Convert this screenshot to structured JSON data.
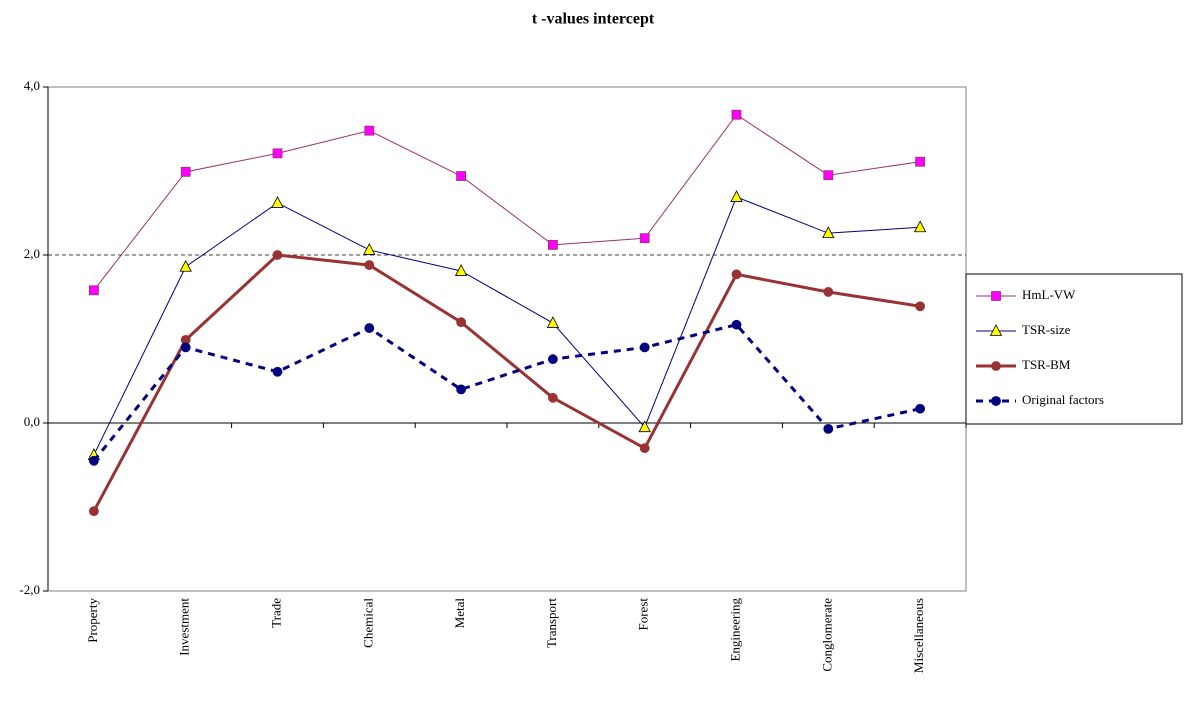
{
  "chart_data": {
    "type": "line",
    "title": "t -values intercept",
    "categories": [
      "Property",
      "Investment",
      "Trade",
      "Chemical",
      "Metal",
      "Transport",
      "Forest",
      "Engineering",
      "Conglomerate",
      "Miscellaneous"
    ],
    "ylim": [
      -2,
      4
    ],
    "yticks": [
      {
        "value": -2,
        "label": "-2,0"
      },
      {
        "value": 0,
        "label": "0,0"
      },
      {
        "value": 2,
        "label": "2,0"
      },
      {
        "value": 4,
        "label": "4,0"
      }
    ],
    "reference_lines": [
      2
    ],
    "legend": "right",
    "series": [
      {
        "name": "HmL-VW",
        "color": "#993366",
        "marker": "square",
        "marker_fill": "#ff00ff",
        "line_width": 1,
        "dashed": false,
        "values": [
          1.58,
          2.99,
          3.21,
          3.48,
          2.94,
          2.12,
          2.2,
          3.67,
          2.95,
          3.11
        ]
      },
      {
        "name": "TSR-size",
        "color": "#000080",
        "marker": "triangle",
        "marker_fill": "#ffff00",
        "line_width": 1,
        "dashed": false,
        "values": [
          -0.38,
          1.86,
          2.62,
          2.06,
          1.81,
          1.19,
          -0.05,
          2.69,
          2.26,
          2.33
        ]
      },
      {
        "name": "TSR-BM",
        "color": "#993333",
        "marker": "circle",
        "marker_fill": "#993333",
        "line_width": 3,
        "dashed": false,
        "values": [
          -1.05,
          0.99,
          2.0,
          1.88,
          1.2,
          0.3,
          -0.3,
          1.77,
          1.56,
          1.39
        ]
      },
      {
        "name": "Original factors",
        "color": "#000080",
        "marker": "circle",
        "marker_fill": "#000080",
        "line_width": 3,
        "dashed": true,
        "values": [
          -0.45,
          0.9,
          0.61,
          1.13,
          0.4,
          0.76,
          0.9,
          1.17,
          -0.07,
          0.17
        ]
      }
    ]
  }
}
